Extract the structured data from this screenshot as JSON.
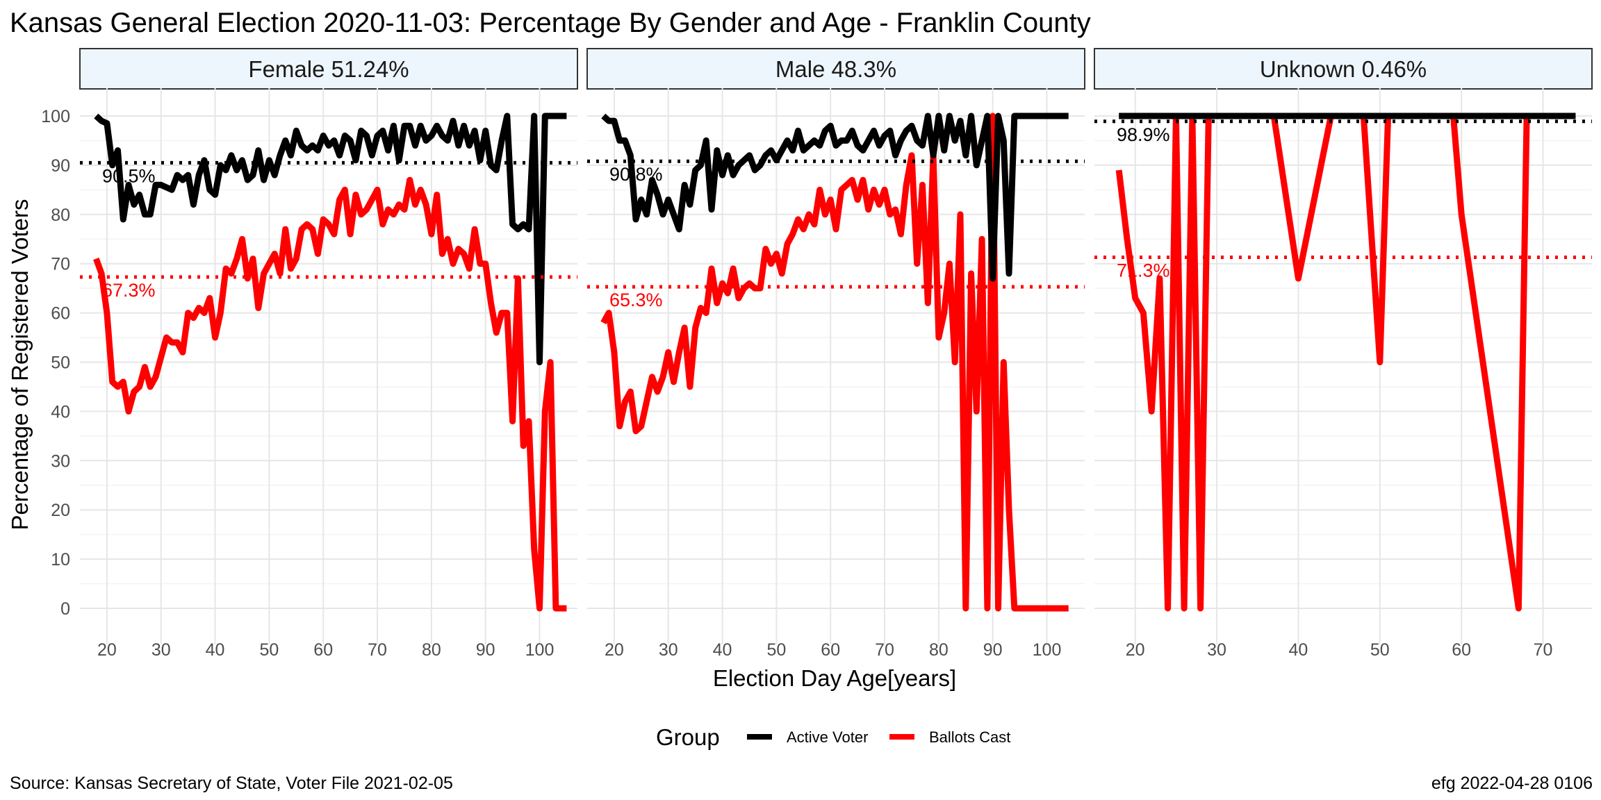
{
  "chart_data": {
    "type": "line",
    "title": "Kansas General Election 2020-11-03:  Percentage By Gender and Age - Franklin County",
    "xlabel": "Election Day Age[years]",
    "ylabel": "Percentage of Registered Voters",
    "ylim": [
      0,
      100
    ],
    "y_ticks": [
      "0",
      "10",
      "20",
      "30",
      "40",
      "50",
      "60",
      "70",
      "80",
      "90",
      "100"
    ],
    "legend": {
      "title": "Group",
      "position": "bottom",
      "entries": [
        {
          "name": "Active Voter",
          "color": "#000000"
        },
        {
          "name": "Ballots Cast",
          "color": "#ff0000"
        }
      ]
    },
    "caption_left": "Source:  Kansas Secretary of State, Voter File  2021-02-05",
    "caption_right": "efg 2022-04-28 0106",
    "grid": true,
    "panels": [
      {
        "label": "Female 51.24%",
        "xlim": [
          15,
          107
        ],
        "x_ticks": [
          "20",
          "30",
          "40",
          "50",
          "60",
          "70",
          "80",
          "90",
          "100"
        ],
        "reference_lines": [
          {
            "series": "Active Voter",
            "value": 90.5,
            "label": "90.5%"
          },
          {
            "series": "Ballots Cast",
            "value": 67.3,
            "label": "67.3%"
          }
        ],
        "series": [
          {
            "name": "Active Voter",
            "x": [
              18,
              19,
              20,
              21,
              22,
              23,
              24,
              25,
              26,
              27,
              28,
              29,
              30,
              31,
              32,
              33,
              34,
              35,
              36,
              37,
              38,
              39,
              40,
              41,
              42,
              43,
              44,
              45,
              46,
              47,
              48,
              49,
              50,
              51,
              52,
              53,
              54,
              55,
              56,
              57,
              58,
              59,
              60,
              61,
              62,
              63,
              64,
              65,
              66,
              67,
              68,
              69,
              70,
              71,
              72,
              73,
              74,
              75,
              76,
              77,
              78,
              79,
              80,
              81,
              82,
              83,
              84,
              85,
              86,
              87,
              88,
              89,
              90,
              91,
              92,
              93,
              94,
              95,
              96,
              97,
              98,
              99,
              100,
              101,
              102,
              103,
              104,
              105
            ],
            "y": [
              100,
              99,
              98.5,
              90,
              93,
              79,
              86,
              82,
              84,
              80,
              80,
              86,
              86,
              85.5,
              85,
              88,
              87,
              88,
              82,
              88,
              91,
              85,
              84,
              90,
              89,
              92,
              89,
              91,
              87,
              88,
              93,
              87,
              91,
              88,
              92,
              95,
              92,
              97,
              94,
              93,
              94,
              93,
              96,
              94,
              95,
              92,
              96,
              95,
              91,
              97,
              96,
              92,
              96,
              97,
              93,
              98,
              91,
              98,
              98,
              94,
              98,
              95,
              96,
              98,
              96,
              95,
              99,
              94,
              98,
              94,
              97,
              91,
              97,
              90,
              89,
              95,
              100,
              78,
              77,
              78,
              77,
              100,
              50,
              100,
              100,
              100,
              100,
              100
            ]
          },
          {
            "name": "Ballots Cast",
            "x": [
              18,
              19,
              20,
              21,
              22,
              23,
              24,
              25,
              26,
              27,
              28,
              29,
              30,
              31,
              32,
              33,
              34,
              35,
              36,
              37,
              38,
              39,
              40,
              41,
              42,
              43,
              44,
              45,
              46,
              47,
              48,
              49,
              50,
              51,
              52,
              53,
              54,
              55,
              56,
              57,
              58,
              59,
              60,
              61,
              62,
              63,
              64,
              65,
              66,
              67,
              68,
              69,
              70,
              71,
              72,
              73,
              74,
              75,
              76,
              77,
              78,
              79,
              80,
              81,
              82,
              83,
              84,
              85,
              86,
              87,
              88,
              89,
              90,
              91,
              92,
              93,
              94,
              95,
              96,
              97,
              98,
              99,
              100,
              101,
              102,
              103,
              104,
              105
            ],
            "y": [
              71,
              68,
              60,
              46,
              45,
              46,
              40,
              44,
              45,
              49,
              45,
              47,
              51,
              55,
              54,
              54,
              52,
              60,
              59,
              61,
              60,
              63,
              55,
              60,
              69,
              68,
              71,
              75,
              67,
              71,
              61,
              68,
              70,
              72,
              68,
              77,
              69,
              71,
              77,
              78,
              77,
              72,
              79,
              78,
              76,
              83,
              85,
              76,
              84,
              80,
              81,
              83,
              85,
              78,
              81,
              80,
              82,
              81,
              87,
              82,
              85,
              82,
              76,
              84,
              72,
              75,
              70,
              73,
              72,
              69,
              77,
              70,
              70,
              62,
              56,
              60,
              60,
              38,
              67,
              33,
              38,
              12,
              0,
              40,
              50,
              0,
              0,
              0
            ]
          }
        ]
      },
      {
        "label": "Male 48.3%",
        "xlim": [
          15,
          107
        ],
        "x_ticks": [
          "20",
          "30",
          "40",
          "50",
          "60",
          "70",
          "80",
          "90",
          "100"
        ],
        "reference_lines": [
          {
            "series": "Active Voter",
            "value": 90.8,
            "label": "90.8%"
          },
          {
            "series": "Ballots Cast",
            "value": 65.3,
            "label": "65.3%"
          }
        ],
        "series": [
          {
            "name": "Active Voter",
            "x": [
              18,
              19,
              20,
              21,
              22,
              23,
              24,
              25,
              26,
              27,
              28,
              29,
              30,
              31,
              32,
              33,
              34,
              35,
              36,
              37,
              38,
              39,
              40,
              41,
              42,
              43,
              44,
              45,
              46,
              47,
              48,
              49,
              50,
              51,
              52,
              53,
              54,
              55,
              56,
              57,
              58,
              59,
              60,
              61,
              62,
              63,
              64,
              65,
              66,
              67,
              68,
              69,
              70,
              71,
              72,
              73,
              74,
              75,
              76,
              77,
              78,
              79,
              80,
              81,
              82,
              83,
              84,
              85,
              86,
              87,
              88,
              89,
              90,
              91,
              92,
              93,
              94,
              95,
              96,
              97,
              98,
              99,
              100,
              101,
              102,
              103,
              104
            ],
            "y": [
              100,
              99,
              99,
              95,
              95,
              92,
              79,
              83,
              80,
              87,
              84,
              80,
              83,
              80,
              77,
              86,
              82,
              89,
              90,
              95,
              81,
              93,
              88,
              92,
              88,
              90,
              91,
              92,
              89,
              90,
              92,
              93,
              91,
              93,
              95,
              93,
              97,
              93,
              94,
              95,
              94,
              97,
              98,
              94,
              95,
              95,
              97,
              94,
              93,
              95,
              97,
              94,
              96,
              97,
              92,
              95,
              97,
              98,
              95,
              94,
              100,
              92,
              100,
              93,
              100,
              95,
              99,
              92,
              100,
              90,
              95,
              100,
              67,
              100,
              95,
              68,
              100,
              100,
              100,
              100,
              100,
              100,
              100,
              100,
              100,
              100,
              100
            ]
          },
          {
            "name": "Ballots Cast",
            "x": [
              18,
              19,
              20,
              21,
              22,
              23,
              24,
              25,
              26,
              27,
              28,
              29,
              30,
              31,
              32,
              33,
              34,
              35,
              36,
              37,
              38,
              39,
              40,
              41,
              42,
              43,
              44,
              45,
              46,
              47,
              48,
              49,
              50,
              51,
              52,
              53,
              54,
              55,
              56,
              57,
              58,
              59,
              60,
              61,
              62,
              63,
              64,
              65,
              66,
              67,
              68,
              69,
              70,
              71,
              72,
              73,
              74,
              75,
              76,
              77,
              78,
              79,
              80,
              81,
              82,
              83,
              84,
              85,
              86,
              87,
              88,
              89,
              90,
              91,
              92,
              93,
              94,
              95,
              96,
              97,
              98,
              99,
              100,
              101,
              102,
              103,
              104
            ],
            "y": [
              58,
              60,
              52,
              37,
              42,
              44,
              36,
              37,
              42,
              47,
              44,
              47,
              52,
              46,
              52,
              57,
              45,
              57,
              61,
              60,
              69,
              62,
              66,
              64,
              69,
              63,
              65,
              66,
              65,
              65,
              73,
              70,
              72,
              68,
              74,
              76,
              79,
              77,
              80,
              78,
              85,
              80,
              83,
              77,
              85,
              86,
              87,
              83,
              87,
              81,
              85,
              82,
              85,
              80,
              81,
              76,
              86,
              92,
              70,
              86,
              62,
              92,
              55,
              60,
              70,
              50,
              80,
              0,
              68,
              40,
              75,
              0,
              100,
              0,
              50,
              20,
              0,
              0,
              0,
              0,
              0,
              0,
              0,
              0,
              0,
              0,
              0
            ]
          }
        ]
      },
      {
        "label": "Unknown 0.46%",
        "xlim": [
          15,
          76
        ],
        "x_ticks": [
          "20",
          "30",
          "40",
          "50",
          "60",
          "70"
        ],
        "reference_lines": [
          {
            "series": "Active Voter",
            "value": 98.9,
            "label": "98.9%"
          },
          {
            "series": "Ballots Cast",
            "value": 71.3,
            "label": "71.3%"
          }
        ],
        "series": [
          {
            "name": "Active Voter",
            "x": [
              18,
              19,
              20,
              21,
              22,
              23,
              24,
              25,
              26,
              27,
              28,
              29,
              30,
              35,
              40,
              45,
              50,
              55,
              60,
              65,
              70,
              74
            ],
            "y": [
              100,
              100,
              100,
              100,
              100,
              100,
              100,
              100,
              100,
              100,
              100,
              100,
              100,
              100,
              100,
              100,
              100,
              100,
              100,
              100,
              100,
              100
            ]
          },
          {
            "name": "Ballots Cast",
            "x": [
              18,
              19,
              20,
              21,
              22,
              23,
              24,
              25,
              26,
              27,
              28,
              29,
              30,
              32,
              37,
              40,
              44,
              47,
              48,
              50,
              51,
              52,
              57,
              59,
              60,
              67,
              68,
              69,
              74
            ],
            "y": [
              89,
              75,
              63,
              60,
              40,
              67,
              0,
              100,
              0,
              100,
              0,
              100,
              100,
              100,
              100,
              67,
              100,
              100,
              100,
              50,
              100,
              100,
              100,
              100,
              80,
              0,
              100,
              100,
              100
            ]
          }
        ]
      }
    ]
  }
}
